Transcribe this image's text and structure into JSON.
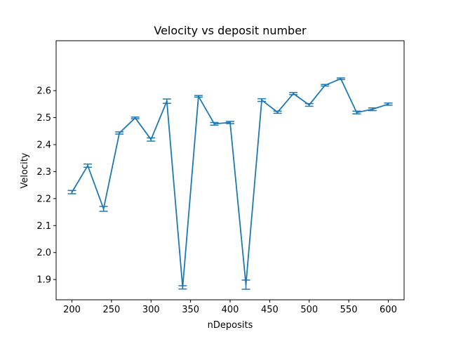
{
  "chart_data": {
    "type": "line",
    "title": "Velocity vs deposit number",
    "xlabel": "nDeposits",
    "ylabel": "Velocity",
    "xlim": [
      180,
      620
    ],
    "ylim": [
      1.825,
      2.785
    ],
    "xticks": [
      200,
      250,
      300,
      350,
      400,
      450,
      500,
      550,
      600
    ],
    "yticks": [
      1.9,
      2.0,
      2.1,
      2.2,
      2.3,
      2.4,
      2.5,
      2.6
    ],
    "ytick_labels": [
      "1.9",
      "2.0",
      "2.1",
      "2.2",
      "2.3",
      "2.4",
      "2.5",
      "2.6"
    ],
    "grid": false,
    "series_color": "#1f77b4",
    "series": [
      {
        "x": [
          200,
          220,
          240,
          260,
          280,
          300,
          320,
          340,
          360,
          380,
          400,
          420,
          440,
          460,
          480,
          500,
          520,
          540,
          560,
          580,
          600
        ],
        "y": [
          2.224,
          2.322,
          2.162,
          2.443,
          2.499,
          2.419,
          2.561,
          1.871,
          2.579,
          2.477,
          2.482,
          1.881,
          2.565,
          2.52,
          2.589,
          2.547,
          2.62,
          2.644,
          2.519,
          2.531,
          2.55
        ],
        "yerr": [
          0.006,
          0.006,
          0.009,
          0.004,
          0.003,
          0.006,
          0.008,
          0.006,
          0.003,
          0.005,
          0.004,
          0.017,
          0.005,
          0.004,
          0.004,
          0.005,
          0.003,
          0.003,
          0.005,
          0.005,
          0.004
        ]
      }
    ]
  }
}
